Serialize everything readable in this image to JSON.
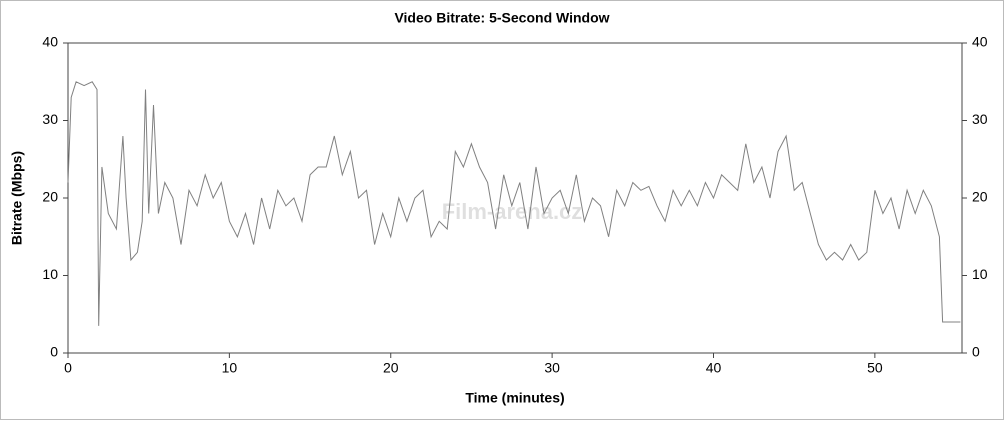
{
  "chart_data": {
    "type": "line",
    "title": "Video Bitrate: 5-Second Window",
    "x_label": "Time (minutes)",
    "y_label": "Bitrate (Mbps)",
    "watermark": "Film-arena.cz",
    "xlim": [
      0,
      55.4
    ],
    "xticks": [
      0,
      10,
      20,
      30,
      40,
      50
    ],
    "ylim": [
      0,
      40
    ],
    "yticks": [
      0,
      10,
      20,
      30,
      40
    ],
    "y2lim": [
      0,
      40
    ],
    "y2ticks": [
      0,
      10,
      20,
      30,
      40
    ],
    "grid": false,
    "series": [
      {
        "name": "Video Bitrate",
        "color": "#808080",
        "x": [
          0,
          0.2,
          0.5,
          1,
          1.5,
          1.8,
          1.9,
          2.1,
          2.5,
          3,
          3.4,
          3.6,
          3.9,
          4.3,
          4.6,
          4.8,
          5,
          5.3,
          5.6,
          6,
          6.5,
          7,
          7.5,
          8,
          8.5,
          9,
          9.5,
          10,
          10.5,
          11,
          11.5,
          12,
          12.5,
          13,
          13.5,
          14,
          14.5,
          15,
          15.5,
          16,
          16.5,
          17,
          17.5,
          18,
          18.5,
          19,
          19.5,
          20,
          20.5,
          21,
          21.5,
          22,
          22.5,
          23,
          23.5,
          24,
          24.5,
          25,
          25.5,
          26,
          26.5,
          27,
          27.5,
          28,
          28.5,
          29,
          29.5,
          30,
          30.5,
          31,
          31.5,
          32,
          32.5,
          33,
          33.5,
          34,
          34.5,
          35,
          35.5,
          36,
          36.5,
          37,
          37.5,
          38,
          38.5,
          39,
          39.5,
          40,
          40.5,
          41,
          41.5,
          42,
          42.5,
          43,
          43.5,
          44,
          44.5,
          45,
          45.5,
          46,
          46.5,
          47,
          47.5,
          48,
          48.5,
          49,
          49.5,
          50,
          50.5,
          51,
          51.5,
          52,
          52.5,
          53,
          53.5,
          54,
          54.2,
          54.5,
          55,
          55.3
        ],
        "values": [
          22,
          33,
          35,
          34.5,
          35,
          34,
          3.5,
          24,
          18,
          16,
          28,
          20,
          12,
          13,
          17,
          34,
          18,
          32,
          18,
          22,
          20,
          14,
          21,
          19,
          23,
          20,
          22,
          17,
          15,
          18,
          14,
          20,
          16,
          21,
          19,
          20,
          17,
          23,
          24,
          24,
          28,
          23,
          26,
          20,
          21,
          14,
          18,
          15,
          20,
          17,
          20,
          21,
          15,
          17,
          16,
          26,
          24,
          27,
          24,
          22,
          16,
          23,
          19,
          22,
          16,
          24,
          18,
          20,
          21,
          18,
          23,
          17,
          20,
          19,
          15,
          21,
          19,
          22,
          21,
          21.5,
          19,
          17,
          21,
          19,
          21,
          19,
          22,
          20,
          23,
          22,
          21,
          27,
          22,
          24,
          20,
          26,
          28,
          21,
          22,
          18,
          14,
          12,
          13,
          12,
          14,
          12,
          13,
          21,
          18,
          20,
          16,
          21,
          18,
          21,
          19,
          15,
          4,
          4,
          4,
          4
        ]
      }
    ]
  }
}
